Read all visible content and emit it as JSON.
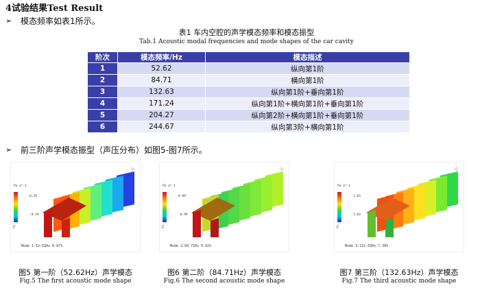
{
  "section": {
    "title": "4试验结果Test Result"
  },
  "bullet1": {
    "arrow": "➢",
    "text": "模态频率如表1所示。"
  },
  "table": {
    "caption_cn": "表1 车内空腔的声学模态频率和模态振型",
    "caption_en": "Tab.1 Acoustic modal frequencies and mode shapes of the car cavity",
    "headers": [
      "阶次",
      "模态频率/Hz",
      "模态描述"
    ],
    "rows": [
      {
        "order": "1",
        "freq": "52.62",
        "desc": "纵向第1阶"
      },
      {
        "order": "2",
        "freq": "84.71",
        "desc": "横向第1阶"
      },
      {
        "order": "3",
        "freq": "132.63",
        "desc": "纵向第1阶+垂向第1阶"
      },
      {
        "order": "4",
        "freq": "171.24",
        "desc": "纵向第1阶+横向第1阶+垂向第1阶"
      },
      {
        "order": "5",
        "freq": "204.27",
        "desc": "纵向第2阶+横向第1阶+垂向第1阶"
      },
      {
        "order": "6",
        "freq": "244.67",
        "desc": "纵向第3阶+横向第1阶"
      }
    ],
    "colors": {
      "header_bg": "#3a3fa8",
      "row_odd": "#d6d9f2",
      "row_even": "#eceef9"
    }
  },
  "bullet2": {
    "arrow": "➢",
    "text": "前三阶声学模态振型（声压分布）如图5-图7所示。"
  },
  "figures": [
    {
      "legend_label": "Pa a^-1",
      "tick_top": "0.29",
      "tick_bottom": "-0.29",
      "side_label": "Pa",
      "mode_label": "Mode 1:52.62Hz 0.87%",
      "caption_cn": "图5 第一阶（52.62Hz）声学模态",
      "caption_en": "Fig.5 The first acoustic mode shape"
    },
    {
      "legend_label": "Pa a^-1",
      "tick_top": "0.99",
      "tick_bottom": "-0.99",
      "side_label": "Pa",
      "mode_label": "Mode 2:84.71Hz 0.92%",
      "caption_cn": "图6 第二阶（84.71Hz）声学模态",
      "caption_en": "Fig.6 The second acoustic mode shape"
    },
    {
      "legend_label": "Pa a^-1",
      "tick_top": "1.03",
      "tick_bottom": "1.03",
      "side_label": "Pa",
      "mode_label": "Mode 3:132.63Hz 7.38%",
      "caption_cn": "图7 第三阶（132.63Hz）声学模态",
      "caption_en": "Fig.7 The third acoustic mode shape"
    }
  ]
}
